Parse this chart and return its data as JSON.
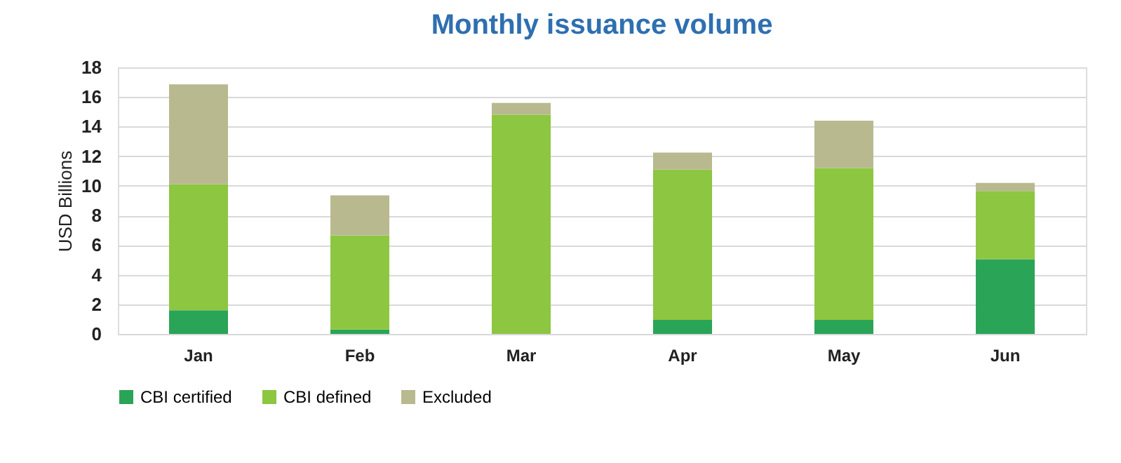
{
  "chart_data": {
    "type": "bar",
    "title": "Monthly issuance volume",
    "ylabel": "USD Billions",
    "categories": [
      "Jan",
      "Feb",
      "Mar",
      "Apr",
      "May",
      "Jun"
    ],
    "stacked": true,
    "series": [
      {
        "name": "CBI certified",
        "color": "#2aa457",
        "values": [
          1.6,
          0.3,
          0,
          0.95,
          0.95,
          5.05
        ]
      },
      {
        "name": "CBI defined",
        "color": "#8dc641",
        "values": [
          8.5,
          6.35,
          14.8,
          10.15,
          10.25,
          4.6
        ]
      },
      {
        "name": "Excluded",
        "color": "#b8b98f",
        "values": [
          6.75,
          2.7,
          0.8,
          1.15,
          3.2,
          0.55
        ]
      }
    ],
    "ylim": [
      0,
      18
    ],
    "yticks": [
      0,
      2,
      4,
      6,
      8,
      10,
      12,
      14,
      16,
      18
    ],
    "grid": "y",
    "legend": "bottom"
  }
}
